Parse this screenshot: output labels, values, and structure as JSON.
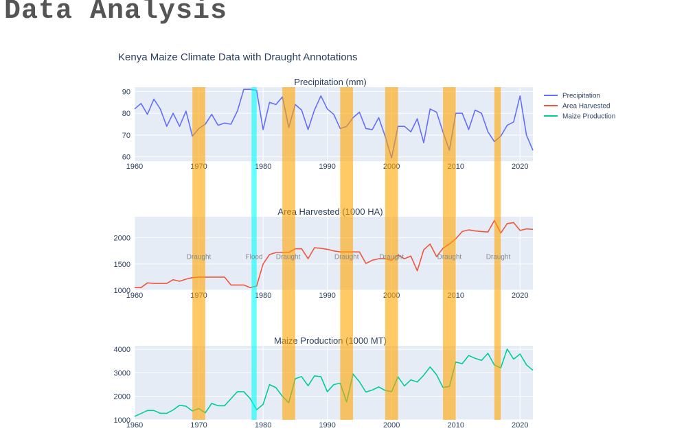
{
  "page": {
    "heading": "Data Analysis"
  },
  "chart_data": {
    "type": "line",
    "title": "Kenya Maize Climate Data with Draught Annotations",
    "x": [
      1960,
      1961,
      1962,
      1963,
      1964,
      1965,
      1966,
      1967,
      1968,
      1969,
      1970,
      1971,
      1972,
      1973,
      1974,
      1975,
      1976,
      1977,
      1978,
      1979,
      1980,
      1981,
      1982,
      1983,
      1984,
      1985,
      1986,
      1987,
      1988,
      1989,
      1990,
      1991,
      1992,
      1993,
      1994,
      1995,
      1996,
      1997,
      1998,
      1999,
      2000,
      2001,
      2002,
      2003,
      2004,
      2005,
      2006,
      2007,
      2008,
      2009,
      2010,
      2011,
      2012,
      2013,
      2014,
      2015,
      2016,
      2017,
      2018,
      2019,
      2020,
      2021,
      2022
    ],
    "xlim": [
      1960,
      2022
    ],
    "xticks": [
      1960,
      1970,
      1980,
      1990,
      2000,
      2010,
      2020
    ],
    "grid": true,
    "legend_position": "right",
    "panels": [
      {
        "series": "Precipitation",
        "title": "Precipitation (mm)",
        "color": "#636efa",
        "ylim": [
          58,
          92
        ],
        "yticks": [
          60,
          70,
          80,
          90
        ],
        "values": [
          82,
          84.5,
          79.5,
          86.5,
          82,
          74,
          80,
          74,
          81,
          69.5,
          73,
          75,
          79.5,
          74.5,
          75.5,
          75,
          81,
          91,
          91,
          90.5,
          72.5,
          85,
          84,
          87.5,
          73.5,
          84,
          81.5,
          72.5,
          81.5,
          88,
          82,
          79.5,
          73,
          74,
          78,
          80.5,
          73,
          72.5,
          78,
          69.5,
          59.5,
          74,
          74,
          71.5,
          77.5,
          66.5,
          82,
          80.5,
          71.5,
          63,
          80,
          80,
          72.5,
          81.5,
          80,
          71.5,
          67,
          69.5,
          74.5,
          76,
          88,
          70,
          63
        ]
      },
      {
        "series": "Area Harvested",
        "title": "Area Harvested (1000 HA)",
        "color": "#ef553b",
        "ylim": [
          1000,
          2400
        ],
        "yticks": [
          1000,
          1500,
          2000
        ],
        "values": [
          1050,
          1050,
          1140,
          1130,
          1130,
          1130,
          1200,
          1170,
          1210,
          1240,
          1250,
          1250,
          1250,
          1250,
          1250,
          1100,
          1100,
          1100,
          1050,
          1080,
          1500,
          1680,
          1720,
          1720,
          1720,
          1790,
          1790,
          1600,
          1810,
          1800,
          1780,
          1750,
          1730,
          1730,
          1730,
          1730,
          1510,
          1570,
          1600,
          1600,
          1570,
          1670,
          1600,
          1650,
          1370,
          1770,
          1880,
          1640,
          1800,
          1880,
          1980,
          2120,
          2150,
          2130,
          2120,
          2110,
          2330,
          2090,
          2270,
          2290,
          2140,
          2170,
          2160
        ]
      },
      {
        "series": "Maize Production",
        "title": "Maize Production (1000 MT)",
        "color": "#00cc96",
        "ylim": [
          1000,
          4150
        ],
        "yticks": [
          1000,
          2000,
          3000,
          4000
        ],
        "values": [
          1150,
          1270,
          1400,
          1400,
          1280,
          1280,
          1420,
          1620,
          1580,
          1380,
          1480,
          1300,
          1700,
          1600,
          1600,
          1900,
          2200,
          2200,
          1900,
          1430,
          1660,
          2500,
          2370,
          2000,
          1730,
          2750,
          2840,
          2450,
          2870,
          2840,
          2200,
          2500,
          2560,
          1760,
          2950,
          2620,
          2180,
          2270,
          2400,
          2250,
          2200,
          2830,
          2440,
          2700,
          2610,
          2900,
          3250,
          2920,
          2380,
          2420,
          3460,
          3390,
          3740,
          3620,
          3530,
          3830,
          3330,
          3210,
          4010,
          3580,
          3800,
          3340,
          3110
        ]
      }
    ],
    "shaded_periods": [
      {
        "type": "draught",
        "start": 1969,
        "end": 1971,
        "color": "#ffa500"
      },
      {
        "type": "flood",
        "start": 1978.2,
        "end": 1979,
        "color": "#00ffff"
      },
      {
        "type": "draught",
        "start": 1983,
        "end": 1985,
        "color": "#ffa500"
      },
      {
        "type": "draught",
        "start": 1992,
        "end": 1994,
        "color": "#ffa500"
      },
      {
        "type": "draught",
        "start": 1999,
        "end": 2001,
        "color": "#ffa500"
      },
      {
        "type": "draught",
        "start": 2008,
        "end": 2010,
        "color": "#ffa500"
      },
      {
        "type": "draught",
        "start": 2016,
        "end": 2017,
        "color": "#ffa500"
      }
    ],
    "annotations": [
      {
        "text": "Draught",
        "x": 1970
      },
      {
        "text": "Flood",
        "x": 1978.6
      },
      {
        "text": "Draught",
        "x": 1983.9
      },
      {
        "text": "Draught",
        "x": 1993
      },
      {
        "text": "Draught",
        "x": 2000
      },
      {
        "text": "Draught",
        "x": 2009
      },
      {
        "text": "Draught",
        "x": 2016.6
      }
    ],
    "annotation_value": 1650,
    "legend": [
      "Precipitation",
      "Area Harvested",
      "Maize Production"
    ]
  }
}
